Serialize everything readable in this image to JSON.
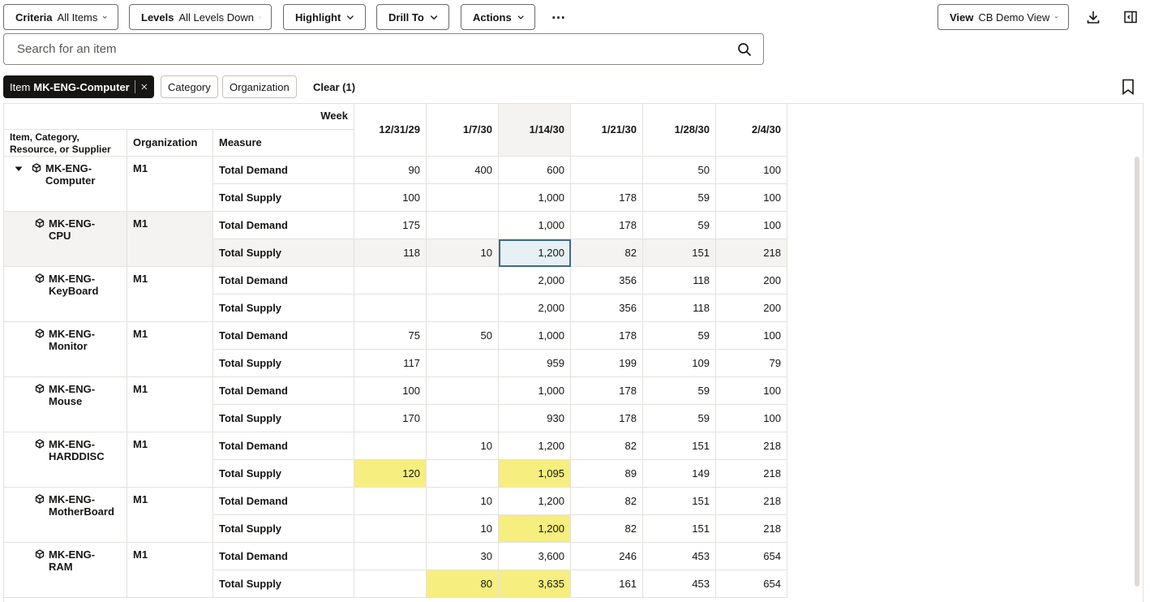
{
  "toolbar": {
    "criteria": {
      "label": "Criteria",
      "value": "All Items"
    },
    "levels": {
      "label": "Levels",
      "value": "All Levels Down"
    },
    "highlight": {
      "label": "Highlight"
    },
    "drill_to": {
      "label": "Drill To"
    },
    "actions": {
      "label": "Actions"
    },
    "more": "…",
    "view": {
      "label": "View",
      "value": "CB Demo View"
    }
  },
  "search": {
    "placeholder": "Search for an item"
  },
  "filters": {
    "active_chip": {
      "label": "Item",
      "value": "MK-ENG-Computer"
    },
    "chips": [
      "Category",
      "Organization"
    ],
    "clear": "Clear (1)"
  },
  "grid": {
    "week_label": "Week",
    "col_item": "Item, Category, Resource, or Supplier",
    "col_org": "Organization",
    "col_measure": "Measure",
    "weeks": [
      "12/31/29",
      "1/7/30",
      "1/14/30",
      "1/21/30",
      "1/28/30",
      "2/4/30"
    ],
    "selected_cell": {
      "group": 1,
      "measure": 1,
      "week": 2
    },
    "highlight_color": "#f6ee7e",
    "groups": [
      {
        "item": "MK-ENG-Computer",
        "expanded": true,
        "org": "M1",
        "rows": [
          {
            "measure": "Total Demand",
            "values": [
              "90",
              "400",
              "600",
              "",
              "50",
              "100"
            ],
            "highlights": []
          },
          {
            "measure": "Total Supply",
            "values": [
              "100",
              "",
              "1,000",
              "178",
              "59",
              "100"
            ],
            "highlights": []
          }
        ]
      },
      {
        "item": "MK-ENG-CPU",
        "org": "M1",
        "rows": [
          {
            "measure": "Total Demand",
            "values": [
              "175",
              "",
              "1,000",
              "178",
              "59",
              "100"
            ],
            "highlights": []
          },
          {
            "measure": "Total Supply",
            "values": [
              "118",
              "10",
              "1,200",
              "82",
              "151",
              "218"
            ],
            "highlights": []
          }
        ]
      },
      {
        "item": "MK-ENG-KeyBoard",
        "org": "M1",
        "rows": [
          {
            "measure": "Total Demand",
            "values": [
              "",
              "",
              "2,000",
              "356",
              "118",
              "200"
            ],
            "highlights": []
          },
          {
            "measure": "Total Supply",
            "values": [
              "",
              "",
              "2,000",
              "356",
              "118",
              "200"
            ],
            "highlights": []
          }
        ]
      },
      {
        "item": "MK-ENG-Monitor",
        "org": "M1",
        "rows": [
          {
            "measure": "Total Demand",
            "values": [
              "75",
              "50",
              "1,000",
              "178",
              "59",
              "100"
            ],
            "highlights": []
          },
          {
            "measure": "Total Supply",
            "values": [
              "117",
              "",
              "959",
              "199",
              "109",
              "79"
            ],
            "highlights": []
          }
        ]
      },
      {
        "item": "MK-ENG-Mouse",
        "org": "M1",
        "rows": [
          {
            "measure": "Total Demand",
            "values": [
              "100",
              "",
              "1,000",
              "178",
              "59",
              "100"
            ],
            "highlights": []
          },
          {
            "measure": "Total Supply",
            "values": [
              "170",
              "",
              "930",
              "178",
              "59",
              "100"
            ],
            "highlights": []
          }
        ]
      },
      {
        "item": "MK-ENG-HARDDISC",
        "org": "M1",
        "rows": [
          {
            "measure": "Total Demand",
            "values": [
              "",
              "10",
              "1,200",
              "82",
              "151",
              "218"
            ],
            "highlights": []
          },
          {
            "measure": "Total Supply",
            "values": [
              "120",
              "",
              "1,095",
              "89",
              "149",
              "218"
            ],
            "highlights": [
              0,
              2
            ]
          }
        ]
      },
      {
        "item": "MK-ENG-MotherBoard",
        "org": "M1",
        "rows": [
          {
            "measure": "Total Demand",
            "values": [
              "",
              "10",
              "1,200",
              "82",
              "151",
              "218"
            ],
            "highlights": []
          },
          {
            "measure": "Total Supply",
            "values": [
              "",
              "10",
              "1,200",
              "82",
              "151",
              "218"
            ],
            "highlights": [
              2
            ]
          }
        ]
      },
      {
        "item": "MK-ENG-RAM",
        "org": "M1",
        "rows": [
          {
            "measure": "Total Demand",
            "values": [
              "",
              "30",
              "3,600",
              "246",
              "453",
              "654"
            ],
            "highlights": []
          },
          {
            "measure": "Total Supply",
            "values": [
              "",
              "80",
              "3,635",
              "161",
              "453",
              "654"
            ],
            "highlights": [
              1,
              2
            ]
          }
        ]
      }
    ]
  }
}
